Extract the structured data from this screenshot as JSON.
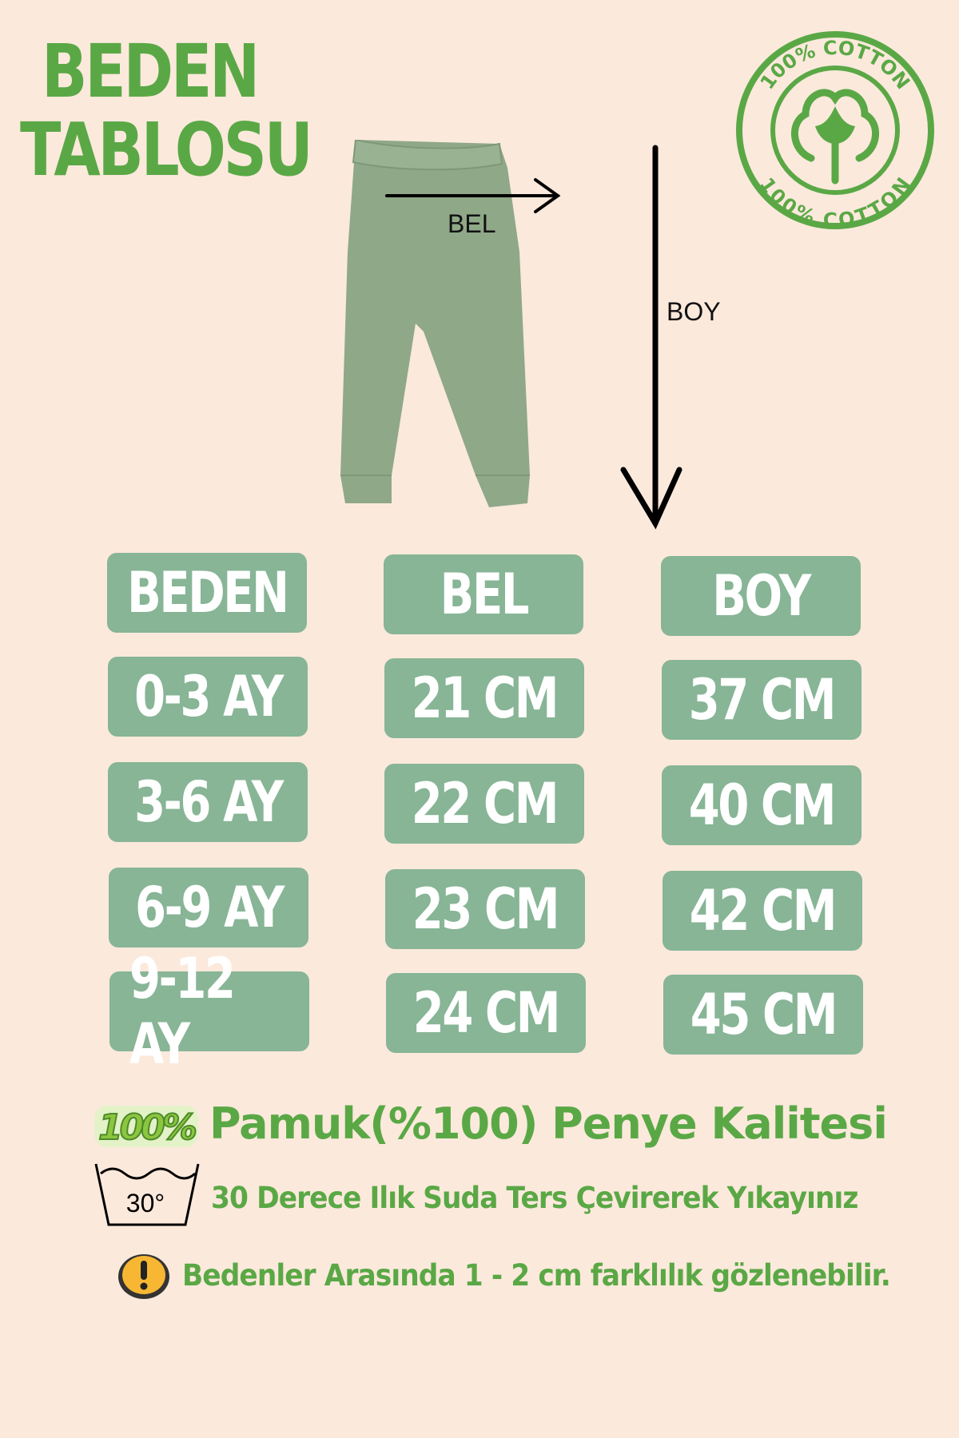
{
  "header": {
    "title_line1": "BEDEN",
    "title_line2": "TABLOSU"
  },
  "logo": {
    "text_top": "100% COTTON",
    "text_bottom": "100% COTTON",
    "icon": "cotton-plant-icon",
    "color": "#5aa845"
  },
  "diagram": {
    "waist_label": "BEL",
    "length_label": "BOY",
    "garment_color": "#8fa888"
  },
  "table": {
    "headers": [
      "BEDEN",
      "BEL",
      "BOY"
    ],
    "rows": [
      [
        "0-3 AY",
        "21 CM",
        "37 CM"
      ],
      [
        "3-6 AY",
        "22 CM",
        "40 CM"
      ],
      [
        "6-9 AY",
        "23 CM",
        "42 CM"
      ],
      [
        "9-12 AY",
        "24 CM",
        "45 CM"
      ]
    ],
    "cell_color": "#87b596"
  },
  "footer": {
    "badge_text": "100%",
    "fabric": "Pamuk(%100) Penye Kalitesi",
    "wash_temp": "30°",
    "wash": "30 Derece Ilık Suda Ters Çevirerek Yıkayınız",
    "warning": "Bedenler Arasında 1 - 2 cm farklılık gözlenebilir."
  },
  "colors": {
    "background": "#fbe9dc",
    "accent": "#5aa845"
  }
}
